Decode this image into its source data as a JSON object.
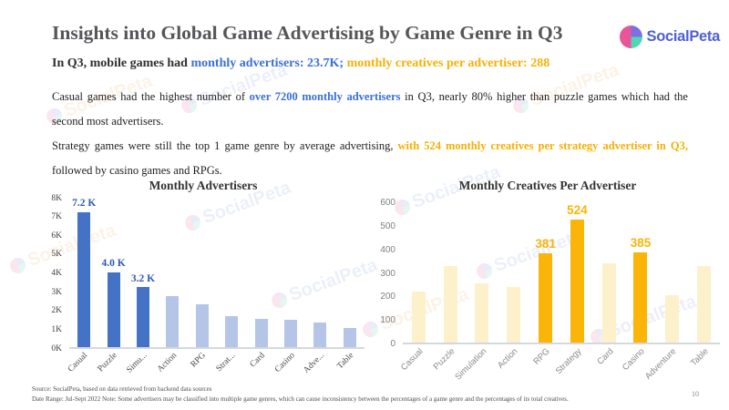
{
  "slide": {
    "title": "Insights into Global Game Advertising by Game Genre in Q3",
    "page_number": "10"
  },
  "logo": {
    "text": "SocialPeta"
  },
  "watermark": {
    "text": "SocialPeta"
  },
  "subtitle": {
    "prefix": "In Q3, mobile games had ",
    "blue": "monthly advertisers: 23.7K;",
    "orange": " monthly creatives per advertiser: 288"
  },
  "paragraph": {
    "p1_a": "Casual games had the highest number of ",
    "p1_blue": "over 7200 monthly advertisers",
    "p1_b": " in Q3, nearly 80% higher than puzzle games which had the second most advertisers.",
    "p2_a": "Strategy games were still the top 1 game genre by average advertising, ",
    "p2_orange": "with 524 monthly creatives per strategy advertiser in Q3,",
    "p2_b": " followed by casino games and RPGs."
  },
  "colors": {
    "highlight_blue": "#3a6fd8",
    "highlight_orange": "#f7b005",
    "title_gray": "#56565a"
  },
  "chart_data": [
    {
      "type": "bar",
      "title": "Monthly Advertisers",
      "categories": [
        "Casual",
        "Puzzle",
        "Simu...",
        "Action",
        "RPG",
        "Strat...",
        "Card",
        "Casino",
        "Adve...",
        "Table"
      ],
      "values": [
        7200,
        4000,
        3200,
        2700,
        2300,
        1650,
        1500,
        1450,
        1300,
        1000
      ],
      "value_labels": [
        "7.2 K",
        "4.0 K",
        "3.2 K",
        "",
        "",
        "",
        "",
        "",
        "",
        ""
      ],
      "highlight_indices": [
        0,
        1,
        2
      ],
      "ylim": [
        0,
        8000
      ],
      "yticks": [
        "0K",
        "1K",
        "2K",
        "3K",
        "4K",
        "5K",
        "6K",
        "7K",
        "8K"
      ],
      "bar_color": "#b5c5e8",
      "highlight_color": "#4472c4",
      "value_label_color": "#2e58b8",
      "xlabel": "",
      "ylabel": "",
      "grid": false,
      "legend_position": "none"
    },
    {
      "type": "bar",
      "title": "Monthly Creatives Per Advertiser",
      "categories": [
        "Casual",
        "Puzzle",
        "Simulation",
        "Action",
        "RPG",
        "Strategy",
        "Card",
        "Casino",
        "Adventure",
        "Table"
      ],
      "values": [
        215,
        325,
        252,
        235,
        381,
        524,
        336,
        385,
        200,
        327
      ],
      "value_labels": [
        "",
        "",
        "",
        "",
        "381",
        "524",
        "",
        "385",
        "",
        ""
      ],
      "highlight_indices": [
        4,
        5,
        7
      ],
      "ylim": [
        0,
        600
      ],
      "yticks": [
        "0",
        "100",
        "200",
        "300",
        "400",
        "500",
        "600"
      ],
      "bar_color": "#fdf1cb",
      "highlight_color": "#fbb408",
      "value_label_color": "#fbb408",
      "xlabel": "",
      "ylabel": "",
      "grid": false,
      "legend_position": "none"
    }
  ],
  "footer": {
    "source": "Source: SocialPeta, based on data retrieved from backend data sources",
    "note": "Date Range: Jul-Sept 2022  Note: Some advertisers may be classified into multiple game genres, which can cause inconsistency between the percentages of a game genre and the percentages of its total creatives."
  }
}
